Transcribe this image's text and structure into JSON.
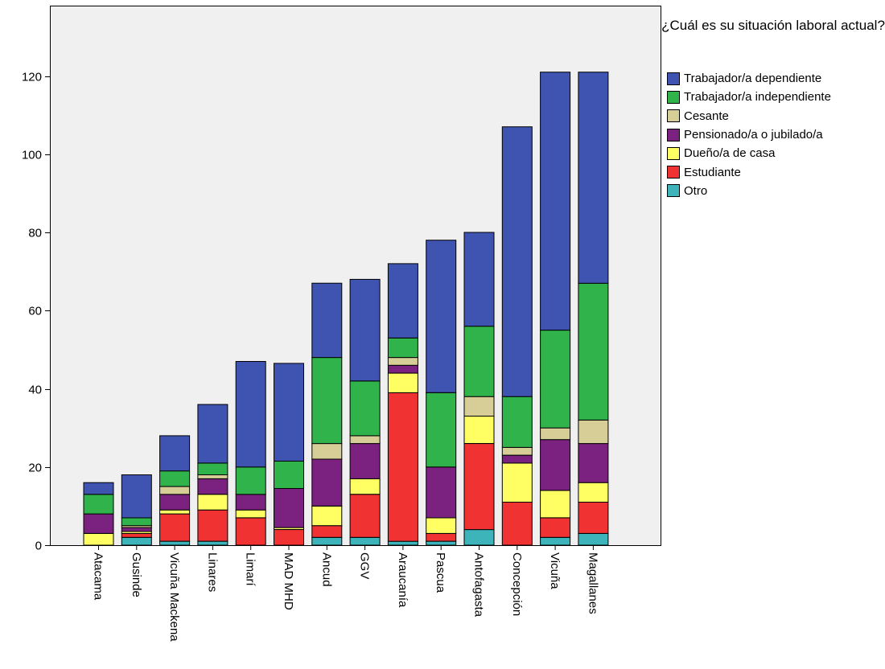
{
  "chart_data": {
    "type": "bar",
    "stacked": true,
    "title": "",
    "xlabel": "",
    "ylabel": "",
    "ylim": [
      0,
      138
    ],
    "yticks": [
      0,
      20,
      40,
      60,
      80,
      100,
      120
    ],
    "grid": false,
    "legend": {
      "title": "¿Cuál es su situación laboral actual?",
      "placement": "right"
    },
    "categories": [
      "Atacama",
      "Gusinde",
      "Vicuña Mackena",
      "Linares",
      "Limarí",
      "MAD MHD",
      "Ancud",
      "GGV",
      "Araucanía",
      "Pascua",
      "Antofagasta",
      "Concepción",
      "Vicuña",
      "Magallanes"
    ],
    "series": [
      {
        "name": "Otro",
        "color": "#3cb4b9",
        "values": [
          0,
          2,
          1,
          1,
          0,
          0,
          2,
          2,
          1,
          1,
          4,
          0,
          2,
          3
        ]
      },
      {
        "name": "Estudiante",
        "color": "#f03232",
        "values": [
          0,
          1,
          7,
          8,
          7,
          4,
          3,
          11,
          38,
          2,
          22,
          11,
          5,
          8
        ]
      },
      {
        "name": "Dueño/a de casa",
        "color": "#ffff64",
        "values": [
          3,
          0.5,
          1,
          4,
          2,
          0.5,
          5,
          4,
          5,
          4,
          7,
          10,
          7,
          5
        ]
      },
      {
        "name": "Pensionado/a o jubilado/a",
        "color": "#7b2281",
        "values": [
          5,
          1,
          4,
          4,
          4,
          10,
          12,
          9,
          2,
          13,
          0,
          2,
          13,
          10
        ]
      },
      {
        "name": "Cesante",
        "color": "#d7cd96",
        "values": [
          0,
          0.5,
          2,
          1,
          0,
          0,
          4,
          2,
          2,
          0,
          5,
          2,
          3,
          6
        ]
      },
      {
        "name": "Trabajador/a independiente",
        "color": "#30b34a",
        "values": [
          5,
          2,
          4,
          3,
          7,
          7,
          22,
          14,
          5,
          19,
          18,
          13,
          25,
          35
        ]
      },
      {
        "name": "Trabajador/a dependiente",
        "color": "#3f54b0",
        "values": [
          3,
          11,
          9,
          15,
          27,
          25,
          19,
          26,
          19,
          39,
          24,
          69,
          66,
          54
        ]
      }
    ]
  }
}
